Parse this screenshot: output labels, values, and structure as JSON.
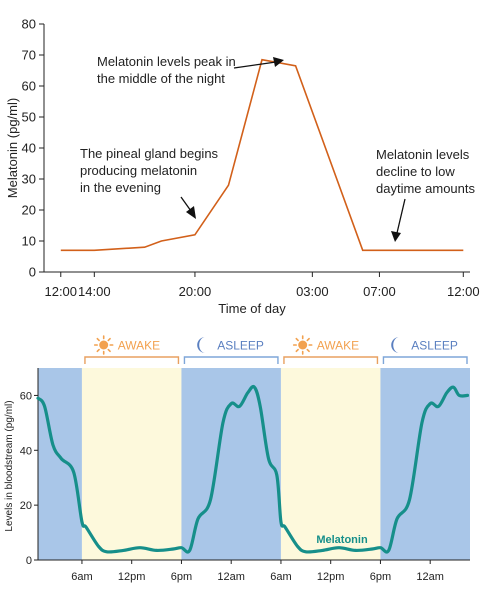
{
  "colors": {
    "line1": "#d2601a",
    "awake_band": "#fdf9dc",
    "asleep_band": "#a9c6e8",
    "teal": "#168f8a",
    "sun": "#f2a14f",
    "moon": "#5a7fc0",
    "awake_bracket": "#e8a060",
    "asleep_bracket": "#7ea6d8"
  },
  "chart_data": [
    {
      "type": "line",
      "title": "",
      "xlabel": "Time of day",
      "ylabel": "Melatonin (pg/ml)",
      "ylim": [
        0,
        80
      ],
      "yticks": [
        0,
        10,
        20,
        30,
        40,
        50,
        60,
        70,
        80
      ],
      "x_hours": [
        12,
        14,
        17,
        18,
        20,
        22,
        24,
        26,
        30,
        31,
        36
      ],
      "xticks": [
        {
          "hour": 12,
          "label": "12:00"
        },
        {
          "hour": 14,
          "label": "14:00"
        },
        {
          "hour": 20,
          "label": "20:00"
        },
        {
          "hour": 27,
          "label": "03:00"
        },
        {
          "hour": 31,
          "label": "07:00"
        },
        {
          "hour": 36,
          "label": "12:00"
        }
      ],
      "series": [
        {
          "values": [
            7,
            7,
            8,
            10,
            12,
            28,
            68.5,
            66.5,
            7,
            7,
            7
          ]
        }
      ],
      "annotations": [
        {
          "lines": [
            "Melatonin levels peak in",
            "the middle of the night"
          ]
        },
        {
          "lines": [
            "The pineal gland begins",
            "producing melatonin",
            "in the evening"
          ]
        },
        {
          "lines": [
            "Melatonin levels",
            "decline to low",
            "daytime amounts"
          ]
        }
      ]
    },
    {
      "type": "area",
      "title": "",
      "xlabel": "",
      "ylabel": "Levels in bloodstream  (pg/ml)",
      "ylim": [
        0,
        70
      ],
      "yticks": [
        0,
        20,
        40,
        60
      ],
      "xticks": [
        {
          "hour": 6,
          "label": "6am"
        },
        {
          "hour": 12,
          "label": "12pm"
        },
        {
          "hour": 18,
          "label": "6pm"
        },
        {
          "hour": 24,
          "label": "12am"
        },
        {
          "hour": 30,
          "label": "6am"
        },
        {
          "hour": 36,
          "label": "12pm"
        },
        {
          "hour": 42,
          "label": "6pm"
        },
        {
          "hour": 48,
          "label": "12am"
        }
      ],
      "bands": [
        {
          "state": "asleep",
          "from": 0.7,
          "to": 6
        },
        {
          "state": "awake",
          "from": 6,
          "to": 18
        },
        {
          "state": "asleep",
          "from": 18,
          "to": 30
        },
        {
          "state": "awake",
          "from": 30,
          "to": 42
        },
        {
          "state": "asleep",
          "from": 42,
          "to": 54
        }
      ],
      "bracket_labels": [
        {
          "label": "AWAKE",
          "icon": "sun-icon"
        },
        {
          "label": "ASLEEP",
          "icon": "moon-icon"
        },
        {
          "label": "AWAKE",
          "icon": "sun-icon"
        },
        {
          "label": "ASLEEP",
          "icon": "moon-icon"
        }
      ],
      "series": [
        {
          "name": "Melatonin",
          "x": [
            0.7,
            1.5,
            2.5,
            3.5,
            5,
            6,
            6.5,
            8,
            9,
            11,
            13,
            15,
            17,
            18,
            19,
            20,
            21.5,
            23,
            24,
            25,
            26,
            26.8,
            27.5,
            28.5,
            29.5,
            30,
            30.5,
            32,
            33,
            35,
            37,
            39,
            41,
            42,
            43,
            44,
            45.5,
            47,
            48,
            49,
            50,
            50.8,
            51.5,
            52.5
          ],
          "values": [
            59,
            56,
            42,
            37,
            32,
            14,
            12,
            5,
            3,
            3.5,
            4.5,
            3.5,
            4,
            4.5,
            3.5,
            15,
            22,
            50,
            57,
            56,
            61,
            63,
            56,
            37,
            31,
            14,
            12,
            5,
            3,
            3.5,
            4.5,
            3.5,
            4,
            4.5,
            3.5,
            15,
            22,
            50,
            57,
            56,
            61,
            63,
            60,
            60
          ]
        }
      ]
    }
  ]
}
